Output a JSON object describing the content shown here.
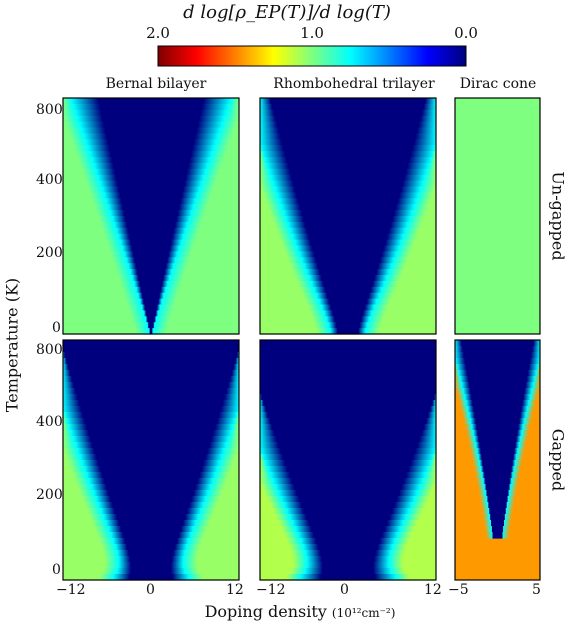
{
  "colorbar": {
    "title": "d log[ρ_EP(T)]/d log(T)",
    "ticks": [
      "2.0",
      "1.0",
      "0.0"
    ],
    "colors": [
      "#7f0000",
      "#ff0000",
      "#ff7f00",
      "#ffff00",
      "#7fff7f",
      "#00ffff",
      "#007fff",
      "#0000ff",
      "#00007f"
    ]
  },
  "columns": [
    "Bernal bilayer",
    "Rhombohedral trilayer",
    "Dirac cone"
  ],
  "rows": [
    "Un-gapped",
    "Gapped"
  ],
  "y_axis": {
    "title": "Temperature (K)",
    "ticks": [
      "800",
      "400",
      "200",
      "0"
    ]
  },
  "x_axis": {
    "title": "Doping density",
    "unit": "(10¹²cm⁻²)",
    "ticks_bilayer": [
      "−12",
      "0",
      "12"
    ],
    "ticks_trilayer": [
      "−12",
      "0",
      "12"
    ],
    "ticks_dirac": [
      "−5",
      "0",
      "5"
    ]
  },
  "chart_data": [
    {
      "type": "heatmap",
      "panel": "Bernal bilayer, Un-gapped",
      "xlim": [
        -12,
        12
      ],
      "x_ticks": [
        -12,
        0,
        12
      ],
      "y_ticks": [
        0,
        200,
        400,
        800
      ],
      "y_scale": "nonlinear",
      "colormap": "jet_reversed",
      "clim": [
        0.0,
        2.0
      ],
      "background_value": 1.0,
      "features": [
        {
          "description": "low-value wedge opening from x=0 at T=0 to about ±4 at T=800",
          "min_value": 0.0
        }
      ]
    },
    {
      "type": "heatmap",
      "panel": "Rhombohedral trilayer, Un-gapped",
      "xlim": [
        -12,
        12
      ],
      "x_ticks": [
        -12,
        0,
        12
      ],
      "y_ticks": [
        0,
        200,
        400,
        800
      ],
      "colormap": "jet_reversed",
      "clim": [
        0.0,
        2.0
      ],
      "background_value": 1.0,
      "features": [
        {
          "description": "broad low-value region centered at x=0, about ±5 at T=800",
          "min_value": 0.0
        }
      ]
    },
    {
      "type": "heatmap",
      "panel": "Dirac cone, Un-gapped",
      "xlim": [
        -5,
        5
      ],
      "x_ticks": [
        -5,
        0,
        5
      ],
      "y_ticks": [
        0,
        200,
        400,
        800
      ],
      "colormap": "jet_reversed",
      "clim": [
        0.0,
        2.0
      ],
      "background_value": 1.0
    },
    {
      "type": "heatmap",
      "panel": "Bernal bilayer, Gapped",
      "xlim": [
        -12,
        12
      ],
      "x_ticks": [
        -12,
        0,
        12
      ],
      "y_ticks": [
        0,
        200,
        400,
        800
      ],
      "colormap": "jet_reversed",
      "clim": [
        0.0,
        2.0
      ],
      "background_value": 1.0,
      "features": [
        {
          "description": "low-value wedge centered at x=0, about ±5 at T=800, with blue spread near T=0",
          "min_value": 0.0
        }
      ]
    },
    {
      "type": "heatmap",
      "panel": "Rhombohedral trilayer, Gapped",
      "xlim": [
        -12,
        12
      ],
      "x_ticks": [
        -12,
        0,
        12
      ],
      "y_ticks": [
        0,
        200,
        400,
        800
      ],
      "colormap": "jet_reversed",
      "clim": [
        0.0,
        2.0
      ],
      "background_value": 1.0,
      "features": [
        {
          "description": "wide low-value region centered at x=0, about ±6 at T=800",
          "min_value": 0.0
        }
      ]
    },
    {
      "type": "heatmap",
      "panel": "Dirac cone, Gapped",
      "xlim": [
        -5,
        5
      ],
      "x_ticks": [
        -5,
        0,
        5
      ],
      "y_ticks": [
        0,
        200,
        400,
        800
      ],
      "colormap": "jet_reversed",
      "clim": [
        0.0,
        2.0
      ],
      "background_value": 1.4,
      "features": [
        {
          "description": "narrow low-value wedge at x=0 above about T=100, high (~1.5) values at the sides",
          "min_value": 0.0
        }
      ]
    }
  ]
}
